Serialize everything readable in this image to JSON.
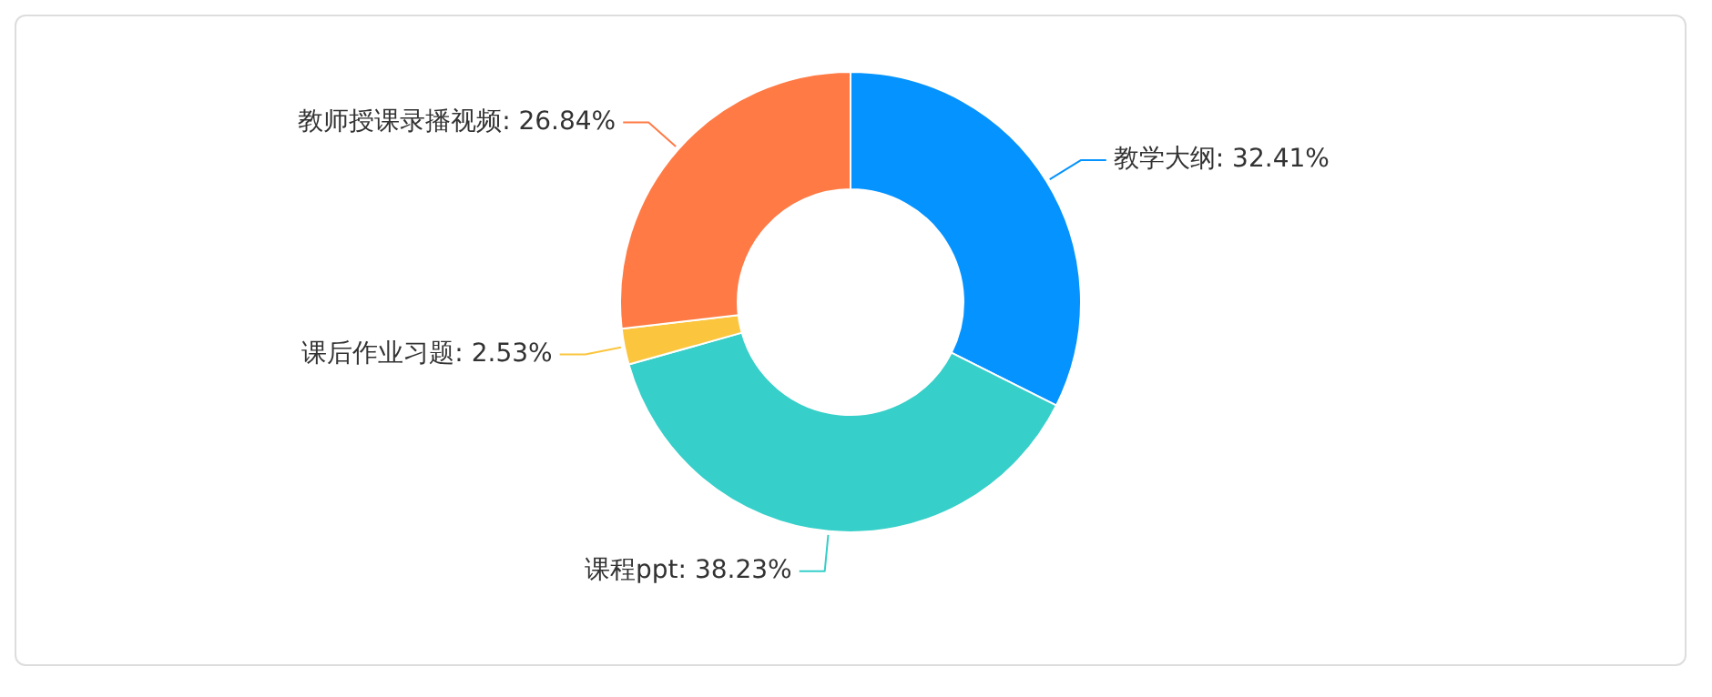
{
  "chart_data": {
    "type": "donut",
    "categories": [
      "教学大纲",
      "课程ppt",
      "课后作业习题",
      "教师授课录播视频"
    ],
    "values": [
      32.41,
      38.23,
      2.53,
      26.84
    ],
    "value_labels": [
      ": 32.41%",
      ": 38.23%",
      ": 2.53%",
      ": 26.84%"
    ],
    "colors": [
      "#0593ff",
      "#36cfc9",
      "#fcc53e",
      "#ff7a45"
    ],
    "legend": false
  }
}
